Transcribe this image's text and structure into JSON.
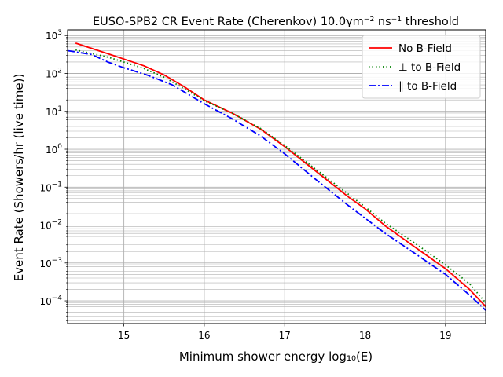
{
  "chart_data": {
    "type": "line",
    "title": "EUSO-SPB2 CR Event Rate (Cherenkov) 10.0γm⁻² ns⁻¹ threshold",
    "xlabel": "Minimum shower energy log₁₀(E)",
    "ylabel": "Event Rate (Showers/hr (live time))",
    "xlim": [
      14.3,
      19.5
    ],
    "ylim_log10": [
      -4.6,
      3.15
    ],
    "yscale": "log",
    "grid": true,
    "legend_position": "upper right",
    "x_ticks": [
      15,
      16,
      17,
      18,
      19
    ],
    "x_tick_labels": [
      "15",
      "16",
      "17",
      "18",
      "19"
    ],
    "y_tick_exponents": [
      3,
      2,
      1,
      0,
      -1,
      -2,
      -3,
      -4
    ],
    "y_tick_labels": [
      {
        "base": "10",
        "exp": "3"
      },
      {
        "base": "10",
        "exp": "2"
      },
      {
        "base": "10",
        "exp": "1"
      },
      {
        "base": "10",
        "exp": "0"
      },
      {
        "base": "10",
        "exp": "−1"
      },
      {
        "base": "10",
        "exp": "−2"
      },
      {
        "base": "10",
        "exp": "−3"
      },
      {
        "base": "10",
        "exp": "−4"
      }
    ],
    "series": [
      {
        "name": "No B-Field",
        "label_text": "No B-Field",
        "color": "#ff0000",
        "style": "solid",
        "x": [
          14.4,
          14.8,
          15.0,
          15.25,
          15.5,
          15.75,
          16.0,
          16.35,
          16.7,
          17.0,
          17.4,
          17.8,
          18.0,
          18.25,
          18.6,
          19.0,
          19.3,
          19.5
        ],
        "log10_y": [
          2.8,
          2.52,
          2.38,
          2.2,
          1.96,
          1.65,
          1.3,
          0.95,
          0.53,
          0.07,
          -0.6,
          -1.27,
          -1.57,
          -2.02,
          -2.55,
          -3.15,
          -3.7,
          -4.15
        ]
      },
      {
        "name": "⊥ to B-Field",
        "label_text": "⊥ to B-Field",
        "color": "#008000",
        "style": "dotted",
        "x": [
          14.4,
          14.8,
          15.0,
          15.25,
          15.5,
          15.75,
          16.0,
          16.35,
          16.7,
          17.0,
          17.4,
          17.8,
          18.0,
          18.25,
          18.6,
          19.0,
          19.3,
          19.5
        ],
        "log10_y": [
          2.62,
          2.43,
          2.3,
          2.13,
          1.9,
          1.6,
          1.28,
          0.95,
          0.55,
          0.1,
          -0.55,
          -1.2,
          -1.52,
          -1.95,
          -2.45,
          -3.05,
          -3.55,
          -4.05
        ]
      },
      {
        "name": "∥ to B-Field",
        "label_text": "∥ to B-Field",
        "color": "#0000ff",
        "style": "dashdot",
        "x": [
          14.3,
          14.6,
          14.8,
          15.0,
          15.3,
          15.6,
          16.0,
          16.35,
          16.7,
          17.0,
          17.4,
          17.8,
          18.0,
          18.25,
          18.6,
          19.0,
          19.3,
          19.5
        ],
        "log10_y": [
          2.6,
          2.5,
          2.3,
          2.15,
          1.95,
          1.7,
          1.2,
          0.8,
          0.35,
          -0.12,
          -0.82,
          -1.5,
          -1.82,
          -2.22,
          -2.72,
          -3.3,
          -3.85,
          -4.25
        ]
      }
    ]
  }
}
